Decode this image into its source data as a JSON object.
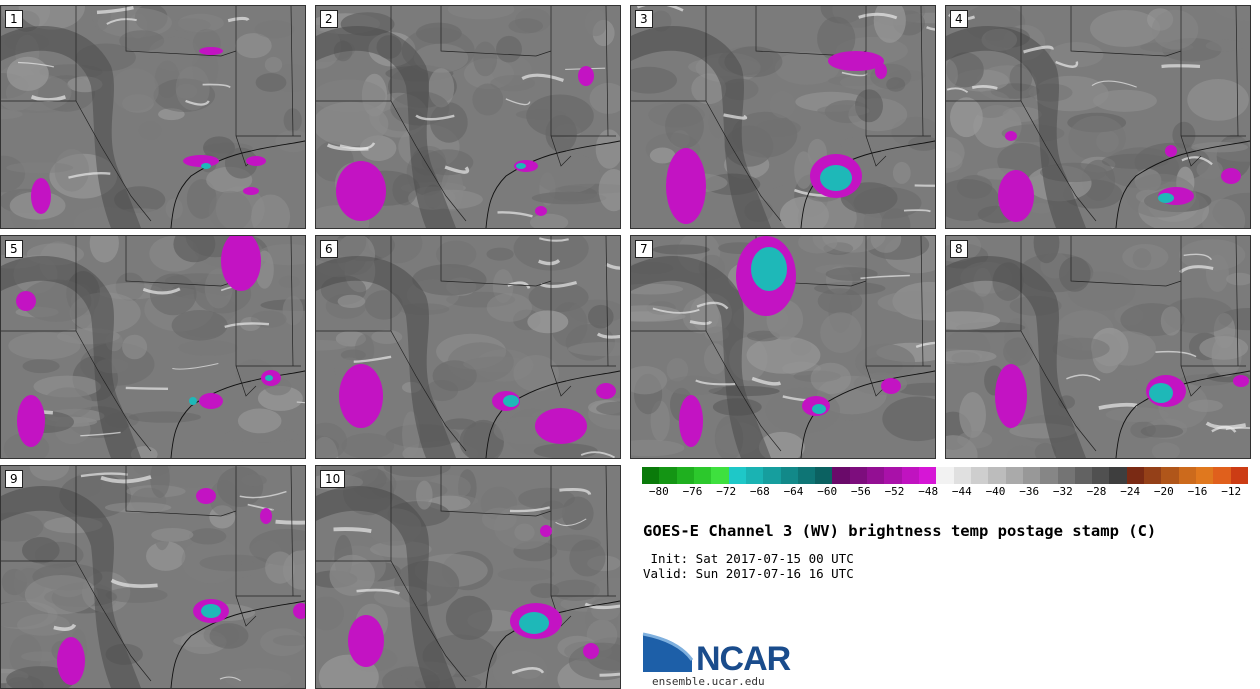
{
  "panels": [
    {
      "label": "1"
    },
    {
      "label": "2"
    },
    {
      "label": "3"
    },
    {
      "label": "4"
    },
    {
      "label": "5"
    },
    {
      "label": "6"
    },
    {
      "label": "7"
    },
    {
      "label": "8"
    },
    {
      "label": "9"
    },
    {
      "label": "10"
    }
  ],
  "colorbar": {
    "colors": [
      "#0a7a0a",
      "#149514",
      "#1fb01f",
      "#2cc82c",
      "#3ee03e",
      "#1ec8c8",
      "#1ab3b3",
      "#169e9e",
      "#128989",
      "#0e7575",
      "#0b6161",
      "#6a0a6a",
      "#7d0d7d",
      "#930f93",
      "#a911a9",
      "#c013c0",
      "#d616d6",
      "#f2f2f2",
      "#e0e0e0",
      "#cecece",
      "#bcbcbc",
      "#aaaaaa",
      "#989898",
      "#868686",
      "#747474",
      "#626262",
      "#505050",
      "#3e3e3e",
      "#7a2a14",
      "#944018",
      "#b0561a",
      "#cc6a1c",
      "#e0781e",
      "#e0601c",
      "#cc3c14"
    ],
    "ticks": [
      "−80",
      "−76",
      "−72",
      "−68",
      "−64",
      "−60",
      "−56",
      "−52",
      "−48",
      "−44",
      "−40",
      "−36",
      "−32",
      "−28",
      "−24",
      "−20",
      "−16",
      "−12"
    ],
    "range": [
      -82,
      -10
    ]
  },
  "title": "GOES-E Channel 3 (WV) brightness temp postage stamp (C)",
  "init": " Init: Sat 2017-07-15 00 UTC",
  "valid": "Valid: Sun 2017-07-16 16 UTC",
  "logo": {
    "name": "NCAR",
    "url": "ensemble.ucar.edu"
  }
}
